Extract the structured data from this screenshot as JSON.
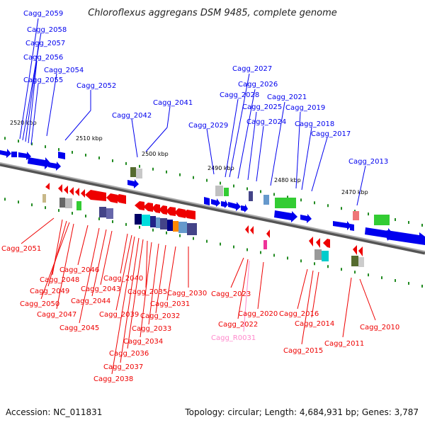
{
  "title": "Chloroflexus aggregans DSM 9485, complete genome",
  "footer": {
    "accession": "Accession: NC_011831",
    "summary": "Topology: circular; Length: 4,684,931 bp; Genes: 3,787"
  },
  "colors": {
    "forward_strand": "#0000ee",
    "reverse_strand": "#ee0000",
    "rna": "#ff88cc",
    "backbone": "#888888",
    "tick": "#228b22"
  },
  "ticks": [
    "2520 kbp",
    "2510 kbp",
    "2500 kbp",
    "2490 kbp",
    "2480 kbp",
    "2470 kbp"
  ],
  "forward_labels": [
    "Cagg_2059",
    "Cagg_2058",
    "Cagg_2057",
    "Cagg_2056",
    "Cagg_2055",
    "Cagg_2054",
    "Cagg_2052",
    "Cagg_2042",
    "Cagg_2041",
    "Cagg_2029",
    "Cagg_2028",
    "Cagg_2027",
    "Cagg_2026",
    "Cagg_2025",
    "Cagg_2024",
    "Cagg_2021",
    "Cagg_2019",
    "Cagg_2018",
    "Cagg_2017",
    "Cagg_2013"
  ],
  "reverse_labels": [
    "Cagg_2051",
    "Cagg_2048",
    "Cagg_2049",
    "Cagg_2050",
    "Cagg_2047",
    "Cagg_2046",
    "Cagg_2045",
    "Cagg_2044",
    "Cagg_2043",
    "Cagg_2040",
    "Cagg_2039",
    "Cagg_2038",
    "Cagg_2037",
    "Cagg_2036",
    "Cagg_2035",
    "Cagg_2034",
    "Cagg_2033",
    "Cagg_2032",
    "Cagg_2031",
    "Cagg_2030",
    "Cagg_2023",
    "Cagg_2022",
    "Cagg_2020",
    "Cagg_2016",
    "Cagg_2015",
    "Cagg_2014",
    "Cagg_2011",
    "Cagg_2010"
  ],
  "rna_labels": [
    "Cagg_R0031"
  ]
}
